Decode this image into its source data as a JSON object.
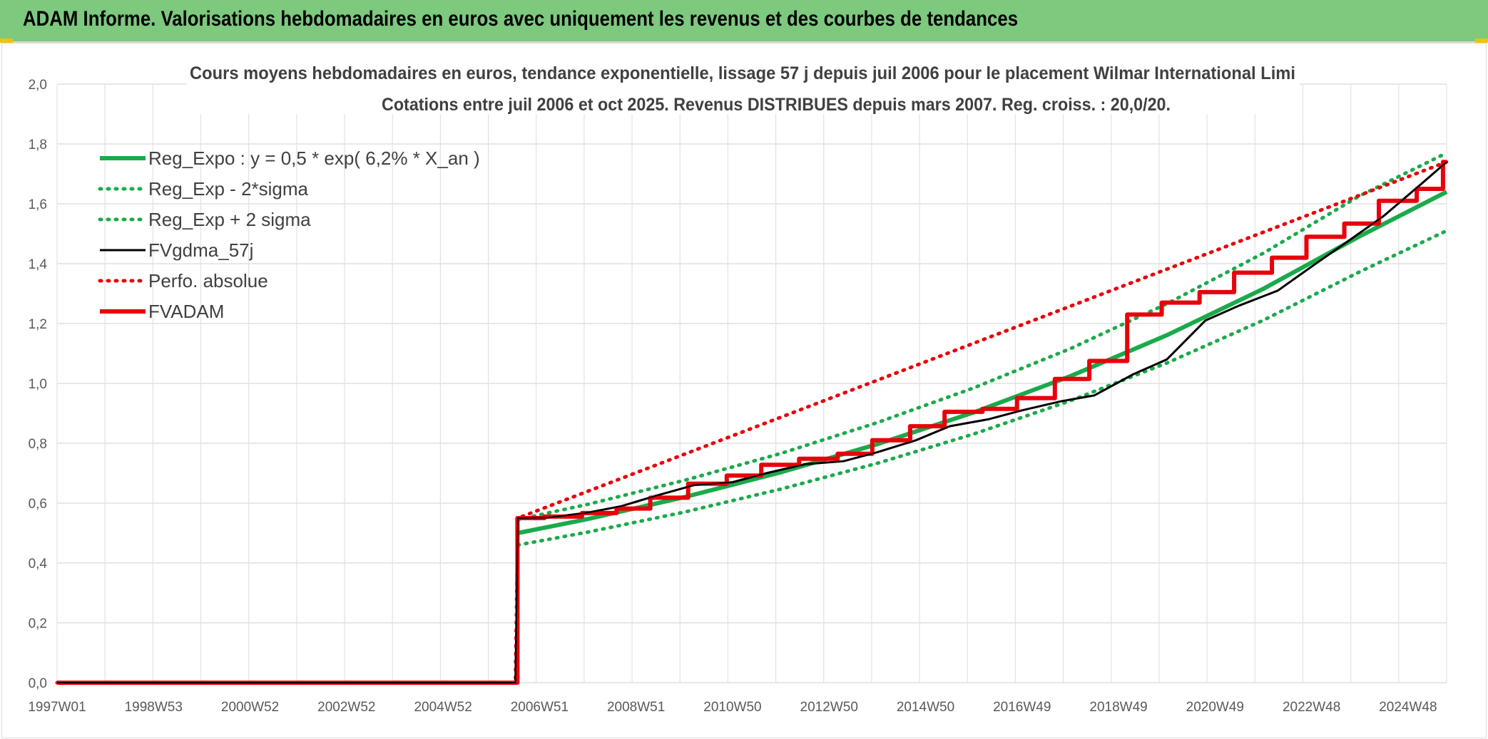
{
  "header": {
    "title": "ADAM Informe. Valorisations hebdomadaires en euros avec uniquement les revenus et des courbes de tendances"
  },
  "chart_data": {
    "type": "line",
    "title": "Cours moyens hebdomadaires en euros, tendance exponentielle, lissage 57 j depuis juil 2006 pour le placement Wilmar International Limi",
    "subtitle": "Cotations entre juil 2006 et oct 2025. Revenus DISTRIBUES depuis mars 2007. Reg. croiss. : 20,0/20.",
    "xlabel": "",
    "ylabel": "",
    "ylim": [
      0,
      2
    ],
    "y_ticks": [
      "0,0",
      "0,2",
      "0,4",
      "0,6",
      "0,8",
      "1,0",
      "1,2",
      "1,4",
      "1,6",
      "1,8",
      "2,0"
    ],
    "x_range": [
      1997.0,
      2025.8
    ],
    "x_tick_labels": [
      "1997W01",
      "1998W53",
      "2000W52",
      "2002W52",
      "2004W52",
      "2006W51",
      "2008W51",
      "2010W50",
      "2012W50",
      "2014W50",
      "2016W49",
      "2018W49",
      "2020W49",
      "2022W48",
      "2024W48"
    ],
    "grid": true,
    "legend_position": "top-left",
    "series": [
      {
        "name": "Reg_Expo : y = 0,5 * exp( 6,2% *  X_an )",
        "color": "#1aaa4b",
        "style": "solid",
        "x": [
          2006.55,
          2008,
          2010,
          2012,
          2014,
          2016,
          2018,
          2020,
          2022,
          2024,
          2025.8
        ],
        "values": [
          0.5,
          0.547,
          0.62,
          0.703,
          0.797,
          0.903,
          1.024,
          1.161,
          1.316,
          1.492,
          1.64
        ]
      },
      {
        "name": "Reg_Exp - 2*sigma",
        "color": "#1aaa4b",
        "style": "dotted",
        "x": [
          2006.55,
          2008,
          2010,
          2012,
          2014,
          2016,
          2018,
          2020,
          2022,
          2024,
          2025.8
        ],
        "values": [
          0.46,
          0.503,
          0.57,
          0.647,
          0.733,
          0.831,
          0.942,
          1.068,
          1.211,
          1.373,
          1.51
        ]
      },
      {
        "name": "Reg_Exp + 2 sigma",
        "color": "#1aaa4b",
        "style": "dotted",
        "x": [
          2006.55,
          2008,
          2010,
          2012,
          2014,
          2016,
          2018,
          2020,
          2022,
          2024,
          2025.8
        ],
        "values": [
          0.545,
          0.596,
          0.676,
          0.766,
          0.869,
          0.985,
          1.116,
          1.266,
          1.435,
          1.627,
          1.77
        ]
      },
      {
        "name": "FVgdma_57j",
        "color": "#000000",
        "style": "solid",
        "x": [
          1997.0,
          2006.5,
          2006.55,
          2007.2,
          2008.0,
          2008.7,
          2009.4,
          2010.2,
          2011.0,
          2011.7,
          2012.5,
          2013.3,
          2014.0,
          2014.8,
          2015.5,
          2016.3,
          2017.0,
          2017.8,
          2018.5,
          2019.3,
          2020.0,
          2020.8,
          2021.5,
          2022.3,
          2023.0,
          2023.8,
          2024.5,
          2025.3,
          2025.8
        ],
        "values": [
          0.0,
          0.0,
          0.55,
          0.552,
          0.568,
          0.59,
          0.624,
          0.66,
          0.67,
          0.7,
          0.73,
          0.74,
          0.77,
          0.81,
          0.857,
          0.88,
          0.91,
          0.94,
          0.96,
          1.03,
          1.08,
          1.21,
          1.26,
          1.31,
          1.39,
          1.48,
          1.56,
          1.67,
          1.74
        ]
      },
      {
        "name": "Perfo. absolue",
        "color": "#e8000b",
        "style": "dotted",
        "x": [
          1997.0,
          2006.5,
          2006.55,
          2025.8
        ],
        "values": [
          0.0,
          0.0,
          0.55,
          1.74
        ]
      },
      {
        "name": "FVADAM",
        "color": "#e8000b",
        "style": "step",
        "x": [
          1997.0,
          2006.5,
          2006.55,
          2007.2,
          2008.0,
          2008.7,
          2009.4,
          2010.2,
          2011.0,
          2011.7,
          2012.5,
          2013.3,
          2014.0,
          2014.8,
          2015.5,
          2016.3,
          2017.0,
          2017.8,
          2018.5,
          2019.3,
          2020.0,
          2020.8,
          2021.5,
          2022.3,
          2023.0,
          2023.8,
          2024.5,
          2025.3,
          2025.8
        ],
        "values": [
          0.0,
          0.0,
          0.55,
          0.555,
          0.567,
          0.582,
          0.618,
          0.665,
          0.692,
          0.728,
          0.748,
          0.765,
          0.81,
          0.857,
          0.905,
          0.915,
          0.951,
          1.015,
          1.075,
          1.23,
          1.27,
          1.305,
          1.37,
          1.42,
          1.49,
          1.534,
          1.61,
          1.65,
          1.74
        ]
      }
    ]
  }
}
